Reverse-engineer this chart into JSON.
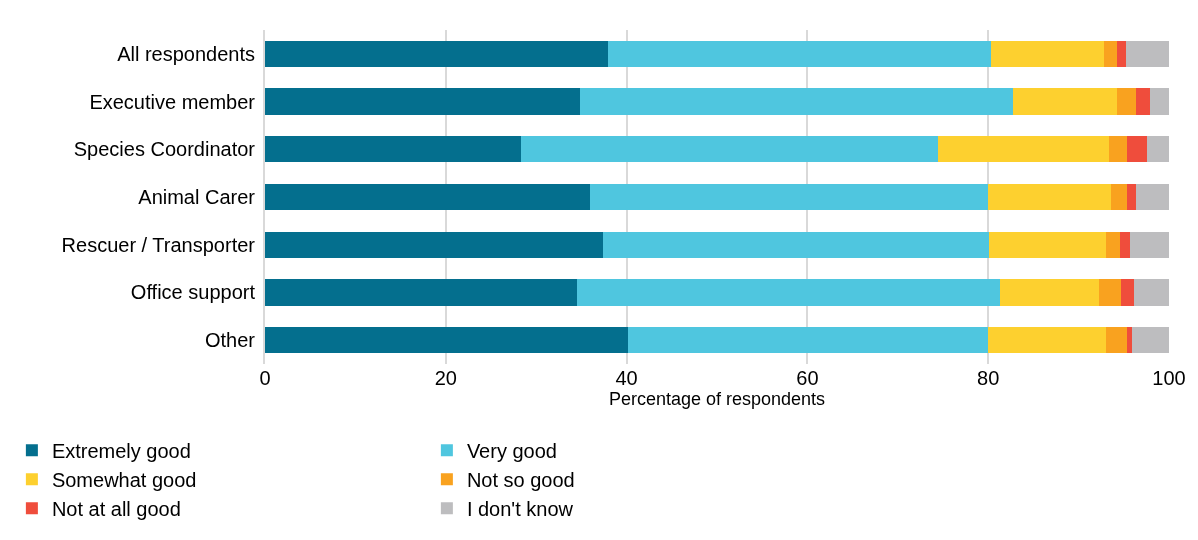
{
  "chart_data": {
    "type": "bar",
    "orientation": "horizontal",
    "stacked": true,
    "xlabel": "Percentage of respondents",
    "categories": [
      "All respondents",
      "Executive member",
      "Species Coordinator",
      "Animal Carer",
      "Rescuer / Transporter",
      "Office support",
      "Other"
    ],
    "series": [
      {
        "name": "Extremely good",
        "color": "#046f8e",
        "values": [
          37.9,
          34.8,
          28.3,
          35.9,
          37.4,
          34.5,
          40.1
        ]
      },
      {
        "name": "Very good",
        "color": "#4fc6df",
        "values": [
          42.4,
          47.9,
          46.1,
          44.1,
          42.7,
          46.8,
          39.9
        ]
      },
      {
        "name": "Somewhat good",
        "color": "#fdd02f",
        "values": [
          12.5,
          11.6,
          19.0,
          13.6,
          12.9,
          11.0,
          13.0
        ]
      },
      {
        "name": "Not so good",
        "color": "#f9a21f",
        "values": [
          1.5,
          2.1,
          2.0,
          1.7,
          1.6,
          2.4,
          2.4
        ]
      },
      {
        "name": "Not at all good",
        "color": "#ef4d3c",
        "values": [
          0.9,
          1.5,
          2.2,
          1.0,
          1.1,
          1.4,
          0.5
        ]
      },
      {
        "name": "I don't know",
        "color": "#bdbdbf",
        "values": [
          4.8,
          2.1,
          2.4,
          3.7,
          4.3,
          3.9,
          4.1
        ]
      }
    ],
    "xlim": [
      0,
      100
    ],
    "xticks": [
      0,
      20,
      40,
      60,
      80,
      100
    ],
    "grid": "x",
    "legend": "bottom"
  }
}
